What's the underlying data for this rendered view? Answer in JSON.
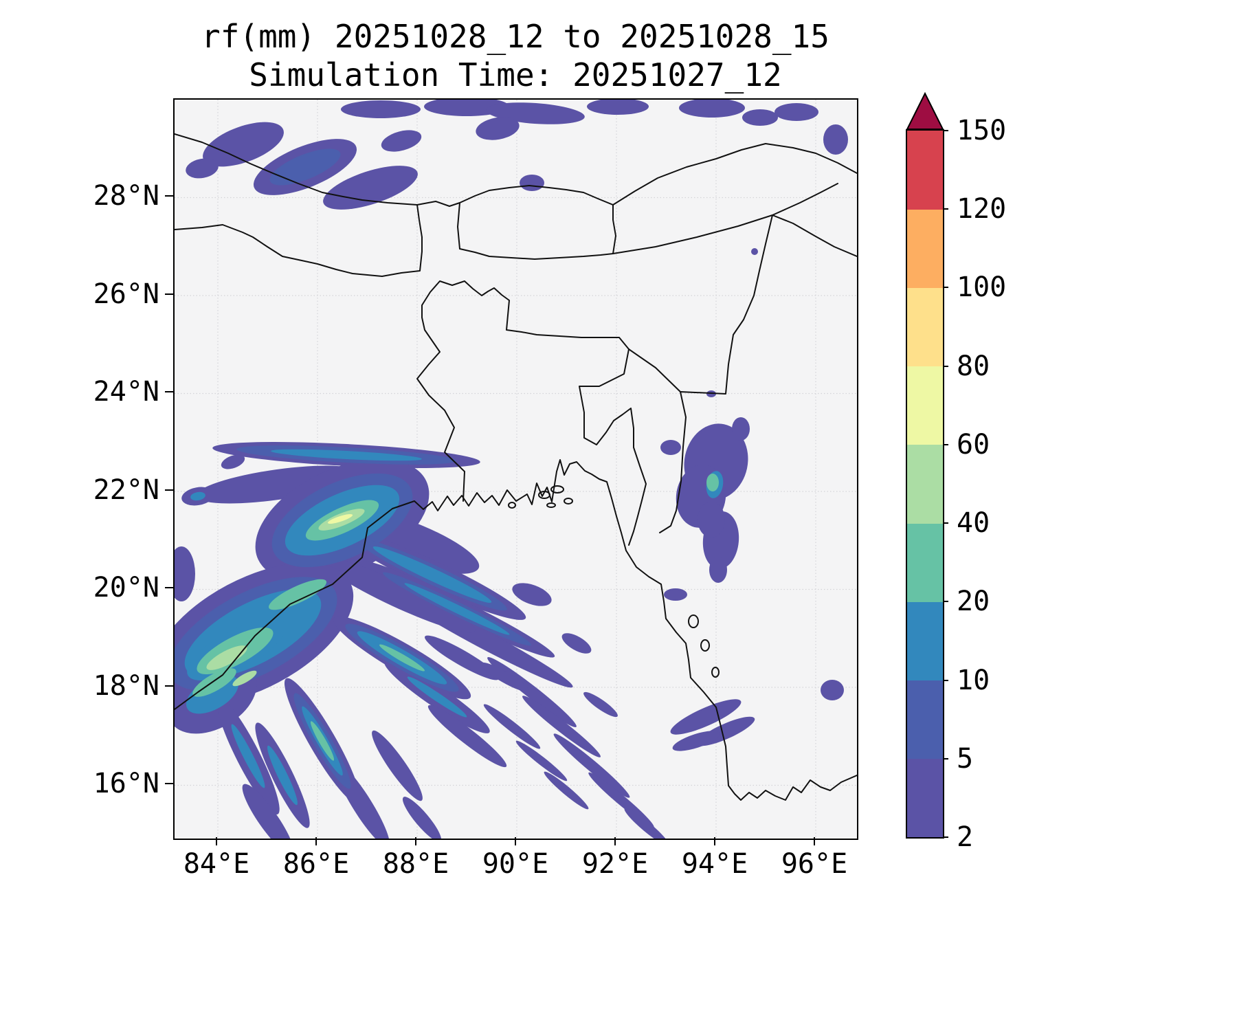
{
  "figure": {
    "title_line1": "rf(mm) 20251028_12 to 20251028_15",
    "title_line2": "Simulation Time: 20251027_12"
  },
  "axes": {
    "x_tick_labels": [
      "84°E",
      "86°E",
      "88°E",
      "90°E",
      "92°E",
      "94°E",
      "96°E"
    ],
    "y_tick_labels": [
      "28°N",
      "26°N",
      "24°N",
      "22°N",
      "20°N",
      "18°N",
      "16°N"
    ]
  },
  "colorbar": {
    "tick_labels": [
      "2",
      "5",
      "10",
      "20",
      "40",
      "60",
      "80",
      "100",
      "120",
      "150"
    ],
    "levels_mm": [
      2,
      5,
      10,
      20,
      40,
      60,
      80,
      100,
      120,
      150
    ],
    "segment_colors_bottom_to_top": [
      "#5b53a6",
      "#4b5fad",
      "#3288bd",
      "#66c2a5",
      "#abdda4",
      "#eef8a4",
      "#fee08b",
      "#fdae61",
      "#d7424e"
    ],
    "over_color": "#9e0d42",
    "extend": "max"
  },
  "chart_data": {
    "type": "heatmap",
    "title": "rf(mm) 20251028_12 to 20251028_15",
    "subtitle": "Simulation Time: 20251027_12",
    "variable": "rf",
    "units": "mm",
    "accumulation_window": "20251028_12 to 20251028_15",
    "simulation_time": "20251027_12",
    "x_axis": {
      "tick_labels": [
        "84°E",
        "86°E",
        "88°E",
        "90°E",
        "92°E",
        "94°E",
        "96°E"
      ],
      "tick_values_deg_east": [
        84,
        86,
        88,
        90,
        92,
        94,
        96
      ],
      "range_deg_east": [
        83.1,
        96.8
      ]
    },
    "y_axis": {
      "tick_labels": [
        "16°N",
        "18°N",
        "20°N",
        "22°N",
        "24°N",
        "26°N",
        "28°N"
      ],
      "tick_values_deg_north": [
        16,
        18,
        20,
        22,
        24,
        26,
        28
      ],
      "range_deg_north": [
        14.9,
        30.0
      ]
    },
    "contour_levels_mm": [
      2,
      5,
      10,
      20,
      40,
      60,
      80,
      100,
      120,
      150
    ],
    "grid": "faint dotted gridlines at labeled ticks",
    "legend_position": "vertical colorbar at right with extend-max triangle",
    "basemap": "coastline and political boundaries of NE India, Nepal, Bhutan, Bangladesh and Myanmar around the Bay of Bengal",
    "rain_features": [
      {
        "name": "himalayan-foothills-band",
        "lon_deg_east": [
          83.5,
          89.0
        ],
        "lat_deg_north": [
          27.8,
          30.0
        ],
        "peak_mm": 10
      },
      {
        "name": "north-edge-patches",
        "lon_deg_east": [
          87.5,
          96.5
        ],
        "lat_deg_north": [
          29.0,
          30.0
        ],
        "peak_mm": 8
      },
      {
        "name": "small-patch",
        "lon_deg_east": [
          90.1,
          90.6
        ],
        "lat_deg_north": [
          28.1,
          28.5
        ],
        "peak_mm": 5
      },
      {
        "name": "odisha-bengal-convective-bands",
        "lon_deg_east": [
          83.1,
          91.0
        ],
        "lat_deg_north": [
          17.0,
          23.1
        ],
        "peak_mm": 70,
        "note": "dominant NW-SE oriented rainbands; teal/green cores 20-60 mm; brightest yellow-green streak near 86.4E, 21.4N"
      },
      {
        "name": "odisha-coast-core",
        "lon_deg_east": [
          83.2,
          86.0
        ],
        "lat_deg_north": [
          17.7,
          20.0
        ],
        "peak_mm": 50
      },
      {
        "name": "bay-of-bengal-diagonal-streaks",
        "lon_deg_east": [
          88.0,
          93.0
        ],
        "lat_deg_north": [
          15.0,
          20.0
        ],
        "peak_mm": 10
      },
      {
        "name": "mizoram-chin-hills-cluster",
        "lon_deg_east": [
          93.0,
          94.7
        ],
        "lat_deg_north": [
          20.3,
          23.5
        ],
        "peak_mm": 25
      },
      {
        "name": "arakan-delta-patches",
        "lon_deg_east": [
          93.4,
          94.8
        ],
        "lat_deg_north": [
          16.6,
          17.8
        ],
        "peak_mm": 8
      },
      {
        "name": "small-patch-east",
        "lon_deg_east": [
          96.1,
          96.6
        ],
        "lat_deg_north": [
          17.7,
          18.2
        ],
        "peak_mm": 6
      }
    ]
  }
}
